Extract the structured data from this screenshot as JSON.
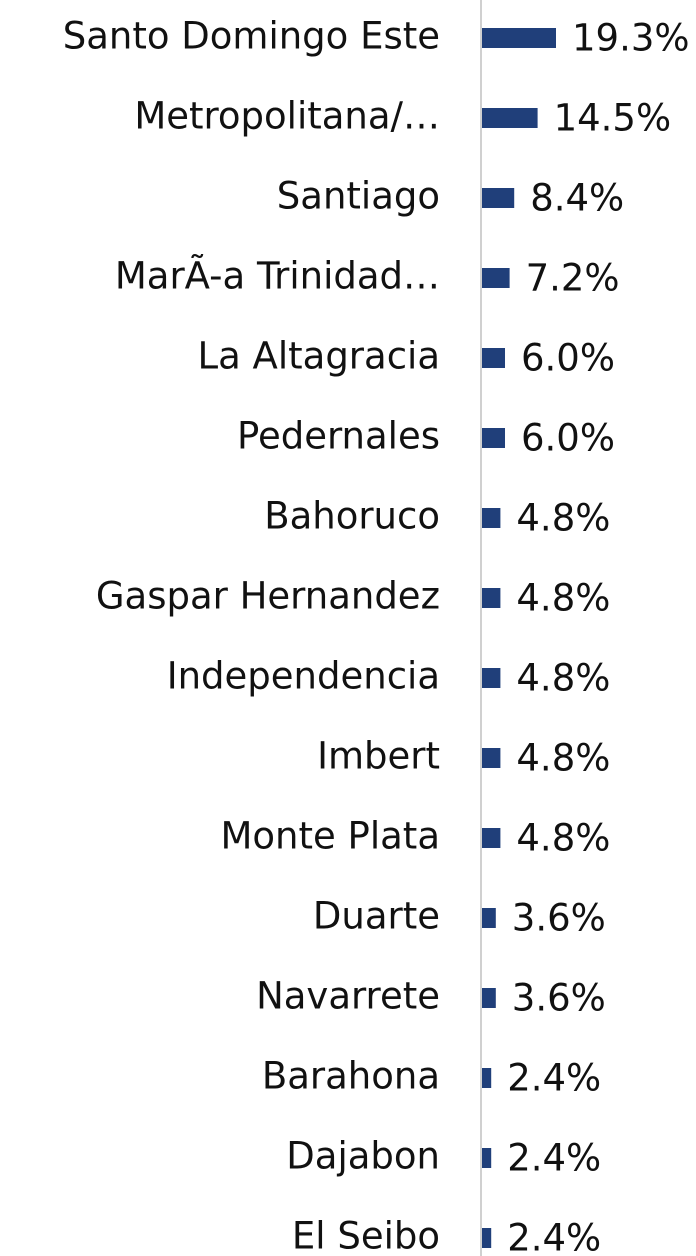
{
  "chart_data": {
    "type": "bar",
    "orientation": "horizontal",
    "color": "#203f7a",
    "categories": [
      "Santo Domingo Este",
      "Metropolitana/…",
      "Santiago",
      "MarÃ-a Trinidad…",
      "La Altagracia",
      "Pedernales",
      "Bahoruco",
      "Gaspar Hernandez",
      "Independencia",
      "Imbert",
      "Monte Plata",
      "Duarte",
      "Navarrete",
      "Barahona",
      "Dajabon",
      "El Seibo"
    ],
    "values": [
      19.3,
      14.5,
      8.4,
      7.2,
      6.0,
      6.0,
      4.8,
      4.8,
      4.8,
      4.8,
      4.8,
      3.6,
      3.6,
      2.4,
      2.4,
      2.4
    ],
    "value_labels": [
      "19.3%",
      "14.5%",
      "8.4%",
      "7.2%",
      "6.0%",
      "6.0%",
      "4.8%",
      "4.8%",
      "4.8%",
      "4.8%",
      "4.8%",
      "3.6%",
      "3.6%",
      "2.4%",
      "2.4%",
      "2.4%"
    ]
  }
}
